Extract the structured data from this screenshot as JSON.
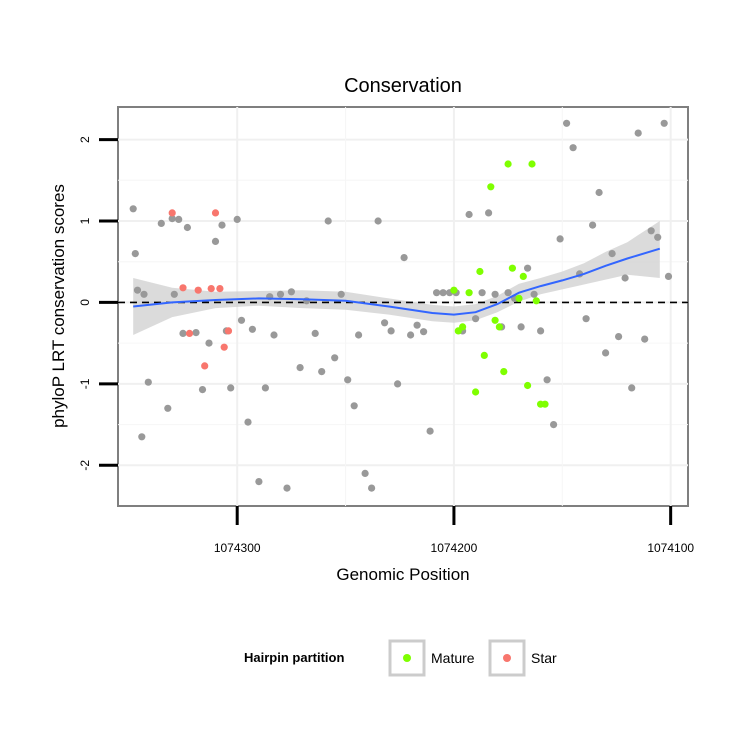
{
  "chart_data": {
    "type": "scatter",
    "title": "Conservation",
    "xlabel": "Genomic Position",
    "ylabel": "phyloP LRT conservation scores",
    "x_reversed": true,
    "xlim": [
      1074355,
      1074092
    ],
    "ylim": [
      -2.5,
      2.4
    ],
    "x_ticks": [
      {
        "value": 1074300,
        "label": "1074300"
      },
      {
        "value": 1074200,
        "label": "1074200"
      },
      {
        "value": 1074100,
        "label": "1074100"
      }
    ],
    "y_ticks": [
      {
        "value": 2,
        "label": "2"
      },
      {
        "value": 1,
        "label": "1"
      },
      {
        "value": 0,
        "label": "0"
      },
      {
        "value": -1,
        "label": "-1"
      },
      {
        "value": -2,
        "label": "-2"
      }
    ],
    "reference_line": {
      "y": 0,
      "style": "dashed",
      "color": "#000000"
    },
    "grid": true,
    "legend": {
      "title": "Hairpin partition",
      "position": "bottom",
      "entries": [
        {
          "label": "Mature",
          "color": "#7fff00"
        },
        {
          "label": "Star",
          "color": "#f8766d"
        }
      ]
    },
    "colors": {
      "other": "#999999",
      "mature": "#7fff00",
      "star": "#f8766d",
      "smooth": "#3366ff",
      "band": "#cfcfcf"
    },
    "smooth": {
      "x": [
        1074348,
        1074330,
        1074310,
        1074290,
        1074270,
        1074250,
        1074230,
        1074210,
        1074200,
        1074190,
        1074180,
        1074170,
        1074160,
        1074150,
        1074140,
        1074130,
        1074120,
        1074105
      ],
      "y": [
        -0.05,
        0.0,
        0.03,
        0.05,
        0.04,
        0.02,
        -0.05,
        -0.13,
        -0.15,
        -0.12,
        -0.02,
        0.12,
        0.2,
        0.27,
        0.35,
        0.45,
        0.54,
        0.66
      ],
      "lower": [
        -0.4,
        -0.18,
        -0.07,
        -0.04,
        -0.07,
        -0.09,
        -0.15,
        -0.23,
        -0.25,
        -0.22,
        -0.12,
        0.01,
        0.1,
        0.16,
        0.22,
        0.28,
        0.34,
        0.3
      ],
      "upper": [
        0.3,
        0.18,
        0.13,
        0.14,
        0.15,
        0.13,
        0.05,
        -0.03,
        -0.05,
        -0.02,
        0.08,
        0.23,
        0.3,
        0.38,
        0.48,
        0.62,
        0.74,
        1.0
      ]
    },
    "series": [
      {
        "group": "other",
        "x": [
          1074348,
          1074347,
          1074346,
          1074344,
          1074343,
          1074341,
          1074335,
          1074332,
          1074330,
          1074329,
          1074327,
          1074325,
          1074323,
          1074319,
          1074316,
          1074313,
          1074310,
          1074307,
          1074305,
          1074303,
          1074300,
          1074298,
          1074295,
          1074293,
          1074290,
          1074287,
          1074285,
          1074283,
          1074280,
          1074277,
          1074275,
          1074271,
          1074268,
          1074264,
          1074261,
          1074258,
          1074255,
          1074252,
          1074249,
          1074246,
          1074244,
          1074241,
          1074238,
          1074235,
          1074232,
          1074229,
          1074226,
          1074223,
          1074220,
          1074217,
          1074214,
          1074211,
          1074208,
          1074205,
          1074202,
          1074199,
          1074196,
          1074193,
          1074190,
          1074187,
          1074184,
          1074181,
          1074178,
          1074175,
          1074172,
          1074169,
          1074166,
          1074163,
          1074160,
          1074157,
          1074154,
          1074151,
          1074148,
          1074145,
          1074142,
          1074139,
          1074136,
          1074133,
          1074130,
          1074127,
          1074124,
          1074121,
          1074118,
          1074115,
          1074112,
          1074109,
          1074106,
          1074103,
          1074101
        ],
        "y": [
          1.15,
          0.6,
          0.15,
          -1.65,
          0.1,
          -0.98,
          0.97,
          -1.3,
          1.03,
          0.1,
          1.02,
          -0.38,
          0.92,
          -0.37,
          -1.07,
          -0.5,
          0.75,
          0.95,
          -0.35,
          -1.05,
          1.02,
          -0.22,
          -1.47,
          -0.33,
          -2.2,
          -1.05,
          0.07,
          -0.4,
          0.1,
          -2.28,
          0.13,
          -0.8,
          0.02,
          -0.38,
          -0.85,
          1.0,
          -0.68,
          0.1,
          -0.95,
          -1.27,
          -0.4,
          -2.1,
          -2.28,
          1.0,
          -0.25,
          -0.35,
          -1.0,
          0.55,
          -0.4,
          -0.28,
          -0.36,
          -1.58,
          0.12,
          0.12,
          0.12,
          0.12,
          -0.35,
          1.08,
          -0.2,
          0.12,
          1.1,
          0.1,
          -0.3,
          0.12,
          0.05,
          -0.3,
          0.42,
          0.1,
          -0.35,
          -0.95,
          -1.5,
          0.78,
          2.2,
          1.9,
          0.35,
          -0.2,
          0.95,
          1.35,
          -0.62,
          0.6,
          -0.42,
          0.3,
          -1.05,
          2.08,
          -0.45,
          0.88,
          0.8,
          2.2,
          0.32
        ]
      },
      {
        "group": "star",
        "x": [
          1074330,
          1074325,
          1074322,
          1074318,
          1074315,
          1074312,
          1074310,
          1074308,
          1074306,
          1074304
        ],
        "y": [
          1.1,
          0.18,
          -0.38,
          0.15,
          -0.78,
          0.17,
          1.1,
          0.17,
          -0.55,
          -0.35
        ]
      },
      {
        "group": "mature",
        "x": [
          1074200,
          1074198,
          1074196,
          1074193,
          1074190,
          1074188,
          1074186,
          1074183,
          1074181,
          1074179,
          1074177,
          1074175,
          1074173,
          1074170,
          1074168,
          1074166,
          1074164,
          1074162,
          1074160,
          1074158
        ],
        "y": [
          0.15,
          -0.35,
          -0.3,
          0.12,
          -1.1,
          0.38,
          -0.65,
          1.42,
          -0.22,
          -0.3,
          -0.85,
          1.7,
          0.42,
          0.05,
          0.32,
          -1.02,
          1.7,
          0.02,
          -1.25,
          -1.25
        ]
      }
    ]
  }
}
